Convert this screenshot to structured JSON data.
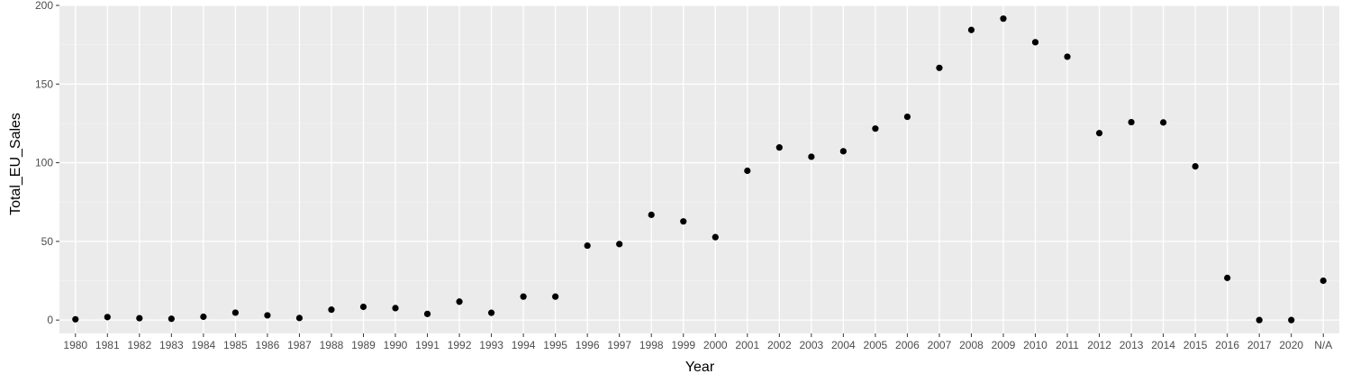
{
  "chart_data": {
    "type": "scatter",
    "xlabel": "Year",
    "ylabel": "Total_EU_Sales",
    "categories": [
      "1980",
      "1981",
      "1982",
      "1983",
      "1984",
      "1985",
      "1986",
      "1987",
      "1988",
      "1989",
      "1990",
      "1991",
      "1992",
      "1993",
      "1994",
      "1995",
      "1996",
      "1997",
      "1998",
      "1999",
      "2000",
      "2001",
      "2002",
      "2003",
      "2004",
      "2005",
      "2006",
      "2007",
      "2008",
      "2009",
      "2010",
      "2011",
      "2012",
      "2013",
      "2014",
      "2015",
      "2016",
      "2017",
      "2020",
      "N/A"
    ],
    "values": [
      0.5,
      1.9,
      1.2,
      0.8,
      2.1,
      4.7,
      3.0,
      1.3,
      6.6,
      8.4,
      7.6,
      3.9,
      11.7,
      4.6,
      14.9,
      14.9,
      47.3,
      48.3,
      66.9,
      62.7,
      52.7,
      94.9,
      109.7,
      103.8,
      107.3,
      121.7,
      129.2,
      160.3,
      184.4,
      191.6,
      176.6,
      167.4,
      118.8,
      125.8,
      125.6,
      97.7,
      26.8,
      0.0,
      0.0,
      25.0
    ],
    "ylim": [
      -8.5,
      200
    ],
    "yticks": [
      0,
      50,
      100,
      150,
      200
    ],
    "grid": true,
    "legend": "none",
    "colors": {
      "panel": "#ebebeb",
      "grid_major": "#ffffff",
      "grid_minor": "#f3f3f3",
      "point": "#000000",
      "tick_text": "#4d4d4d",
      "tick_mark": "#333333"
    }
  }
}
